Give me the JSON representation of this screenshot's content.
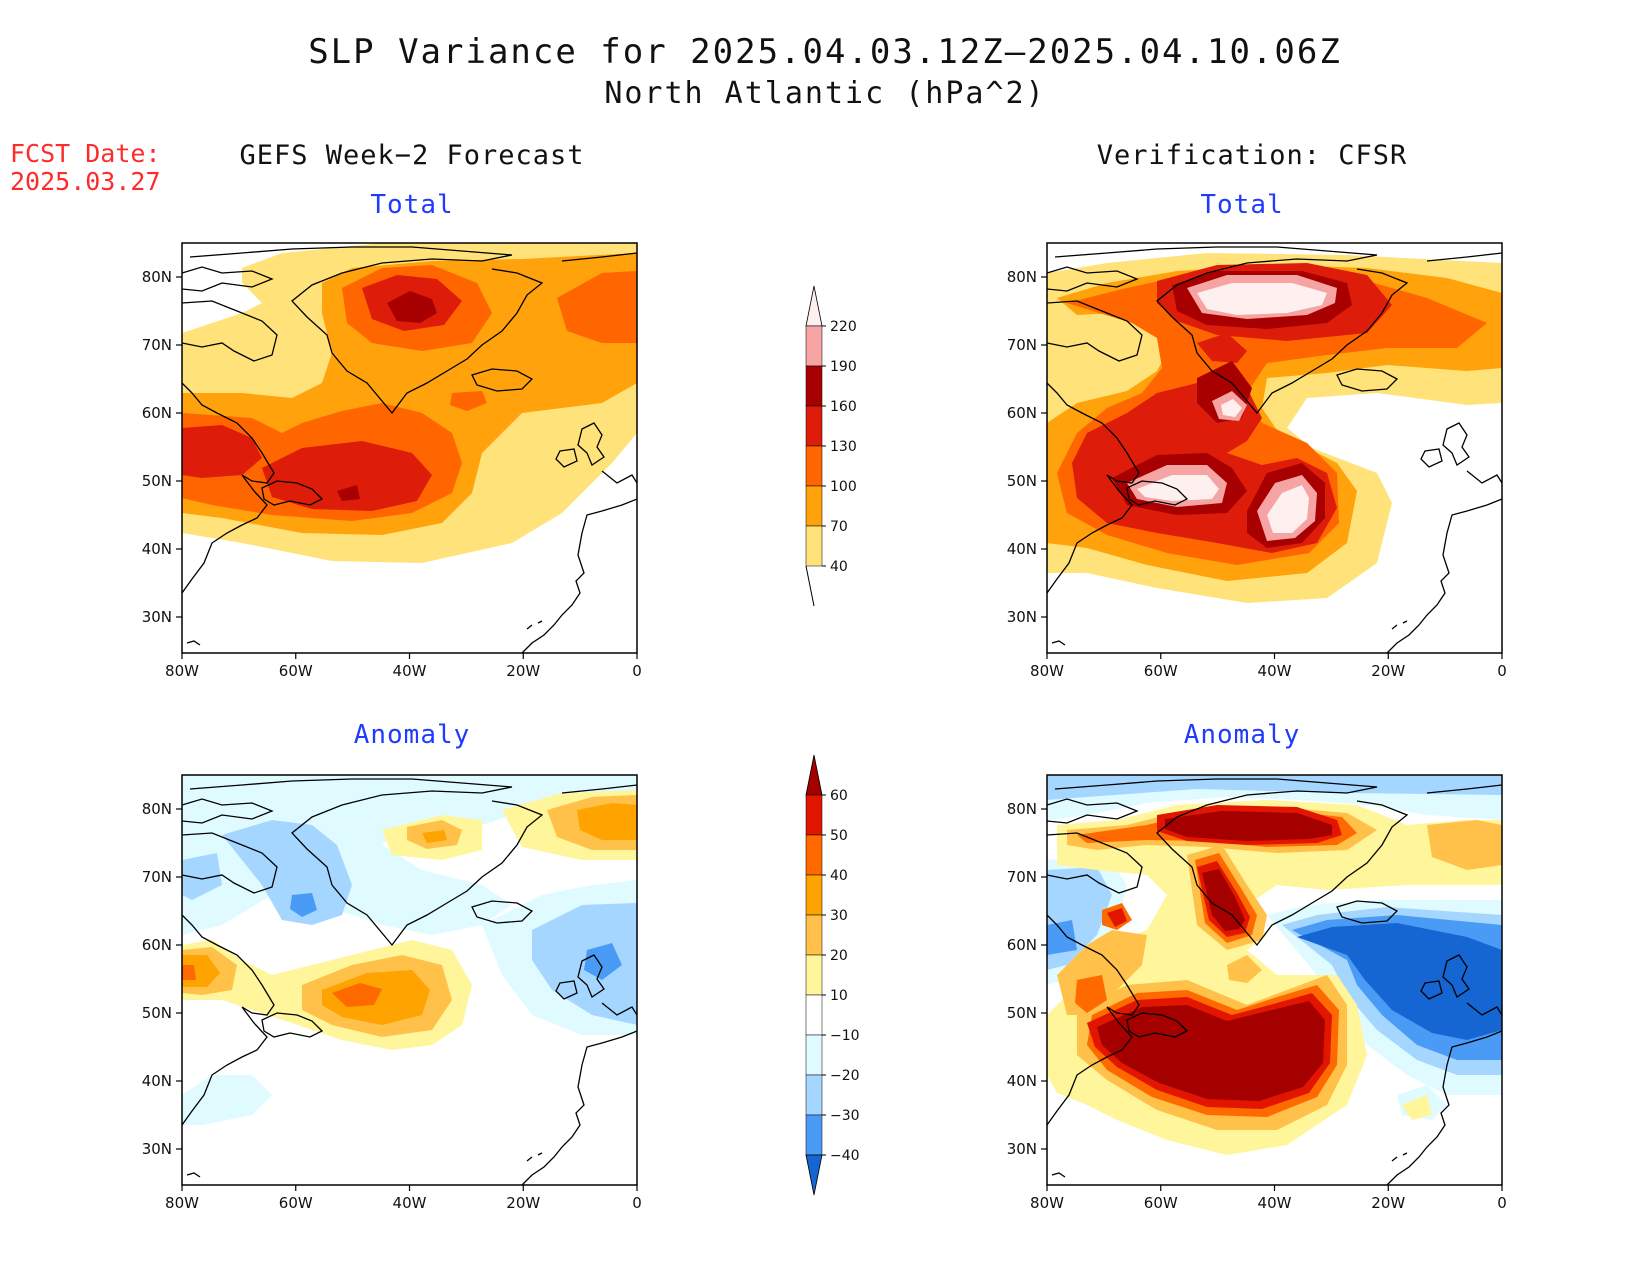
{
  "figure": {
    "title_line1": "SLP Variance for 2025.04.03.12Z–2025.04.10.06Z",
    "title_line2": "North Atlantic (hPa^2)",
    "fcst_label": "FCST Date:",
    "fcst_date": "2025.03.27"
  },
  "columns": {
    "left_title": "GEFS Week−2 Forecast",
    "right_title": "Verification: CFSR"
  },
  "panels": [
    {
      "id": "gefs-total",
      "subtitle": "Total"
    },
    {
      "id": "cfsr-total",
      "subtitle": "Total"
    },
    {
      "id": "gefs-anomaly",
      "subtitle": "Anomaly"
    },
    {
      "id": "cfsr-anomaly",
      "subtitle": "Anomaly"
    }
  ],
  "axes": {
    "lon_ticks": [
      "80W",
      "60W",
      "40W",
      "20W",
      "0"
    ],
    "lat_ticks": [
      "80N",
      "70N",
      "60N",
      "50N",
      "40N",
      "30N"
    ]
  },
  "legends": {
    "total": {
      "levels": [
        "220",
        "190",
        "160",
        "130",
        "100",
        "70",
        "40"
      ],
      "colors": [
        "#fff0f0",
        "#f5a3a3",
        "#a80000",
        "#de1c0a",
        "#ff6600",
        "#ffa20c",
        "#ffe37a"
      ]
    },
    "anomaly": {
      "levels": [
        "60",
        "50",
        "40",
        "30",
        "20",
        "10",
        "−10",
        "−20",
        "−30",
        "−40"
      ],
      "colors": [
        "#a50000",
        "#e21600",
        "#ff6a00",
        "#ffa300",
        "#ffc14a",
        "#fff59a",
        "#ffffff",
        "#e0fbff",
        "#a5d6ff",
        "#4a9bf5",
        "#1565d2"
      ]
    }
  }
}
